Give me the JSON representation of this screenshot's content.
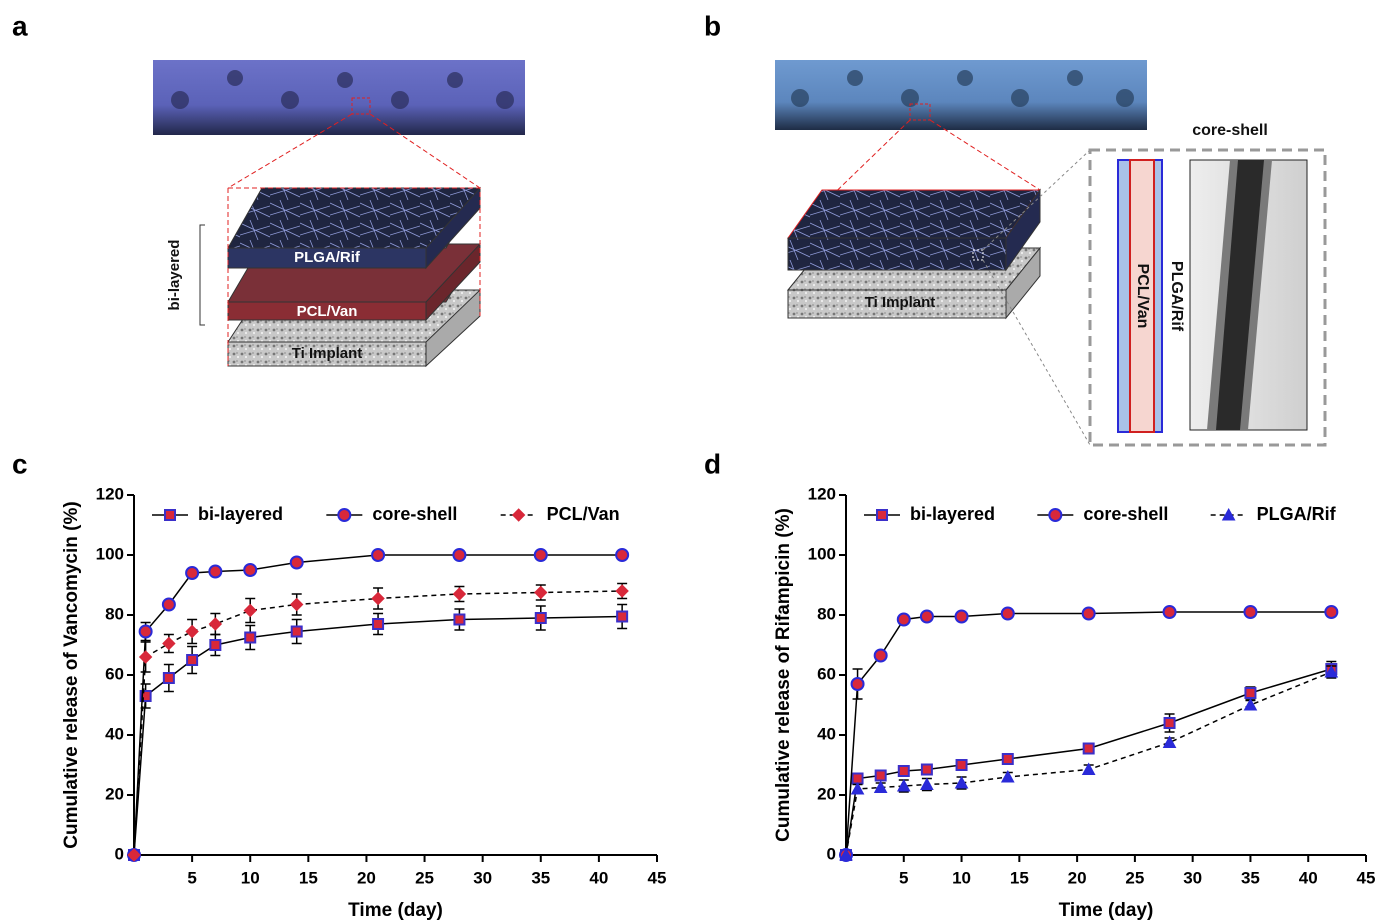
{
  "panel_labels": [
    "a",
    "b",
    "c",
    "d"
  ],
  "diagrams": {
    "a": {
      "bracket_label": "bi-layered",
      "layers": [
        "PLGA/Rif",
        "PCL/Van",
        "Ti Implant"
      ]
    },
    "b": {
      "layers": [
        "Ti Implant"
      ],
      "inset_title": "core-shell",
      "core_label": "PCL/Van",
      "shell_label": "PLGA/Rif"
    }
  },
  "chart_data": [
    {
      "type": "line",
      "xlabel": "Time (day)",
      "ylabel": "Cumulative release of Vancomycin (%)",
      "x": [
        0,
        1,
        3,
        5,
        7,
        10,
        14,
        21,
        28,
        35,
        42
      ],
      "xlim": [
        0,
        45
      ],
      "xticks": [
        5,
        10,
        15,
        20,
        25,
        30,
        35,
        40,
        45
      ],
      "ylim": [
        0,
        120
      ],
      "yticks": [
        0,
        20,
        40,
        60,
        80,
        100,
        120
      ],
      "legend": "top",
      "series": [
        {
          "name": "bi-layered",
          "color": "#3b2fc9",
          "fill": "#d8283a",
          "marker": "square",
          "dashed": false,
          "values": [
            0,
            53,
            59,
            65,
            70,
            72.5,
            74.5,
            77,
            78.5,
            79,
            79.5
          ],
          "errors": [
            null,
            4,
            4.5,
            4.5,
            3.5,
            4,
            4,
            3.5,
            3.5,
            4,
            4
          ]
        },
        {
          "name": "core-shell",
          "color": "#2a2ad8",
          "fill": "#d8283a",
          "marker": "circle",
          "dashed": false,
          "values": [
            0,
            74.5,
            83.5,
            94,
            94.5,
            95,
            97.5,
            100,
            100,
            100,
            100
          ],
          "errors": [
            null,
            3,
            1,
            1,
            1,
            1,
            1,
            1,
            1,
            1,
            1
          ]
        },
        {
          "name": "PCL/Van",
          "color": "#d8283a",
          "fill": "#d8283a",
          "marker": "diamond",
          "dashed": true,
          "values": [
            0,
            66,
            70.5,
            74.5,
            77,
            81.5,
            83.5,
            85.5,
            87,
            87.5,
            88
          ],
          "errors": [
            null,
            5,
            3,
            4,
            3.5,
            4,
            3.5,
            3.5,
            2.5,
            2.5,
            2.5
          ]
        }
      ]
    },
    {
      "type": "line",
      "xlabel": "Time (day)",
      "ylabel": "Cumulative release of Rifampicin (%)",
      "x": [
        0,
        1,
        3,
        5,
        7,
        10,
        14,
        21,
        28,
        35,
        42
      ],
      "xlim": [
        0,
        45
      ],
      "xticks": [
        5,
        10,
        15,
        20,
        25,
        30,
        35,
        40,
        45
      ],
      "ylim": [
        0,
        120
      ],
      "yticks": [
        0,
        20,
        40,
        60,
        80,
        100,
        120
      ],
      "legend": "top",
      "series": [
        {
          "name": "bi-layered",
          "color": "#3b2fc9",
          "fill": "#d8283a",
          "marker": "square",
          "dashed": false,
          "values": [
            0,
            25.5,
            26.5,
            28,
            28.5,
            30,
            32,
            35.5,
            44,
            54,
            62
          ],
          "errors": [
            null,
            1,
            1,
            1,
            1,
            1.5,
            1.5,
            1,
            3,
            2,
            2.5
          ]
        },
        {
          "name": "core-shell",
          "color": "#2a2ad8",
          "fill": "#d8283a",
          "marker": "circle",
          "dashed": false,
          "values": [
            0,
            57,
            66.5,
            78.5,
            79.5,
            79.5,
            80.5,
            80.5,
            81,
            81,
            81
          ],
          "errors": [
            null,
            5,
            1,
            1,
            1,
            1,
            1,
            1,
            1,
            1,
            1
          ]
        },
        {
          "name": "PLGA/Rif",
          "color": "#2a2ad8",
          "fill": "#2a2ad8",
          "marker": "triangle",
          "dashed": true,
          "values": [
            0,
            22,
            22.5,
            23,
            23.5,
            24,
            26,
            28.5,
            37.5,
            50,
            61
          ],
          "errors": [
            null,
            1.5,
            1.5,
            2,
            2,
            2,
            1.5,
            1.5,
            1.5,
            1.5,
            2
          ]
        }
      ]
    }
  ]
}
